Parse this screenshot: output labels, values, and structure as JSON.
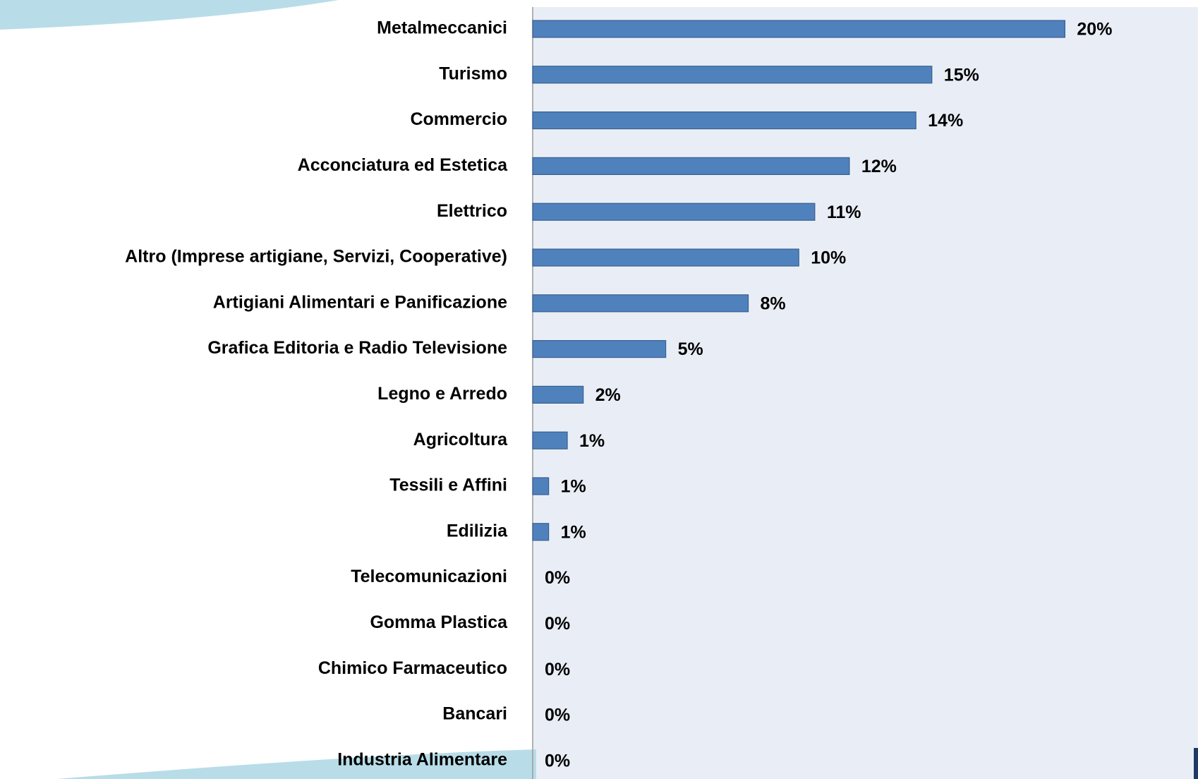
{
  "chart_data": {
    "type": "bar",
    "orientation": "horizontal",
    "color": "#4f81bd",
    "categories": [
      "Metalmeccanici",
      "Turismo",
      "Commercio",
      "Acconciatura ed Estetica",
      "Elettrico",
      "Altro (Imprese artigiane, Servizi, Cooperative)",
      "Artigiani Alimentari e Panificazione",
      "Grafica Editoria e Radio Televisione",
      "Legno e Arredo",
      "Agricoltura",
      "Tessili e Affini",
      "Edilizia",
      "Telecomunicazioni",
      "Gomma Plastica",
      "Chimico Farmaceutico",
      "Bancari",
      "Industria Alimentare"
    ],
    "values": [
      20,
      15,
      14.4,
      11.9,
      10.6,
      10,
      8.1,
      5,
      1.9,
      1.3,
      0.6,
      0.6,
      0,
      0,
      0,
      0,
      0
    ],
    "value_labels": [
      "20%",
      "15%",
      "14%",
      "12%",
      "11%",
      "10%",
      "8%",
      "5%",
      "2%",
      "1%",
      "1%",
      "1%",
      "0%",
      "0%",
      "0%",
      "0%",
      "0%"
    ],
    "xlim": [
      0,
      25
    ]
  }
}
